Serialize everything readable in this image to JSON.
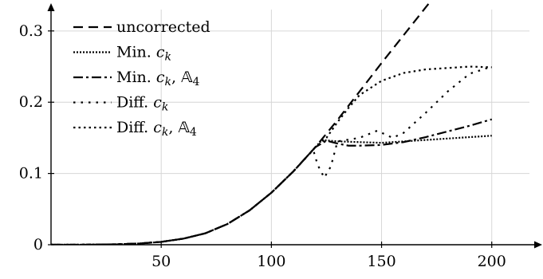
{
  "chart_data": {
    "type": "line",
    "title": "",
    "xlabel": "",
    "ylabel": "",
    "xlim": [
      0,
      220
    ],
    "ylim": [
      0,
      0.33
    ],
    "x_ticks": [
      50,
      100,
      150,
      200
    ],
    "x_tick_labels": [
      "50",
      "100",
      "150",
      "200"
    ],
    "y_ticks": [
      0,
      0.1,
      0.2,
      0.3
    ],
    "y_tick_labels": [
      "0",
      "0.1",
      "0.2",
      "0.3"
    ],
    "grid": true,
    "legend_position": "top-left",
    "series": [
      {
        "name": "uncorrected",
        "legend": {
          "text": "uncorrected",
          "math": "",
          "extra": ""
        },
        "dash": "12,7",
        "points": [
          [
            0,
            0
          ],
          [
            10,
            0
          ],
          [
            20,
            0.0002
          ],
          [
            30,
            0.0006
          ],
          [
            40,
            0.0017
          ],
          [
            50,
            0.004
          ],
          [
            60,
            0.0085
          ],
          [
            70,
            0.016
          ],
          [
            80,
            0.029
          ],
          [
            90,
            0.048
          ],
          [
            100,
            0.073
          ],
          [
            110,
            0.103
          ],
          [
            120,
            0.137
          ],
          [
            130,
            0.175
          ],
          [
            140,
            0.215
          ],
          [
            150,
            0.255
          ],
          [
            160,
            0.294
          ],
          [
            170,
            0.333
          ],
          [
            177,
            0.36
          ]
        ]
      },
      {
        "name": "Min. c_k",
        "legend": {
          "text": "Min. ",
          "math": "c",
          "sub": "k",
          "extra": ""
        },
        "dash": "2,2",
        "points": [
          [
            0,
            0
          ],
          [
            10,
            0
          ],
          [
            20,
            0.0002
          ],
          [
            30,
            0.0006
          ],
          [
            40,
            0.0017
          ],
          [
            50,
            0.004
          ],
          [
            60,
            0.0085
          ],
          [
            70,
            0.016
          ],
          [
            80,
            0.029
          ],
          [
            90,
            0.048
          ],
          [
            100,
            0.073
          ],
          [
            110,
            0.103
          ],
          [
            120,
            0.137
          ],
          [
            123,
            0.147
          ],
          [
            130,
            0.145
          ],
          [
            140,
            0.144
          ],
          [
            150,
            0.143
          ],
          [
            160,
            0.145
          ],
          [
            170,
            0.147
          ],
          [
            180,
            0.149
          ],
          [
            190,
            0.151
          ],
          [
            200,
            0.153
          ]
        ]
      },
      {
        "name": "Min. c_k, A4",
        "legend": {
          "text": "Min. ",
          "math": "c",
          "sub": "k",
          "extra": "𝔸4"
        },
        "dash": "12,4,3,4",
        "points": [
          [
            0,
            0
          ],
          [
            10,
            0
          ],
          [
            20,
            0.0002
          ],
          [
            30,
            0.0006
          ],
          [
            40,
            0.0017
          ],
          [
            50,
            0.004
          ],
          [
            60,
            0.0085
          ],
          [
            70,
            0.016
          ],
          [
            80,
            0.029
          ],
          [
            90,
            0.048
          ],
          [
            100,
            0.073
          ],
          [
            110,
            0.103
          ],
          [
            120,
            0.137
          ],
          [
            125,
            0.146
          ],
          [
            130,
            0.142
          ],
          [
            135,
            0.139
          ],
          [
            140,
            0.139
          ],
          [
            150,
            0.14
          ],
          [
            160,
            0.144
          ],
          [
            170,
            0.151
          ],
          [
            180,
            0.159
          ],
          [
            190,
            0.167
          ],
          [
            200,
            0.176
          ]
        ]
      },
      {
        "name": "Diff. c_k",
        "legend": {
          "text": "Diff. ",
          "math": "c",
          "sub": "k",
          "extra": ""
        },
        "dash": "2.5,7",
        "points": [
          [
            0,
            0
          ],
          [
            10,
            0
          ],
          [
            20,
            0.0002
          ],
          [
            30,
            0.0006
          ],
          [
            40,
            0.0017
          ],
          [
            50,
            0.004
          ],
          [
            60,
            0.0085
          ],
          [
            70,
            0.016
          ],
          [
            80,
            0.029
          ],
          [
            90,
            0.048
          ],
          [
            100,
            0.073
          ],
          [
            110,
            0.103
          ],
          [
            119,
            0.133
          ],
          [
            121,
            0.112
          ],
          [
            124,
            0.094
          ],
          [
            127,
            0.11
          ],
          [
            130,
            0.145
          ],
          [
            140,
            0.15
          ],
          [
            148,
            0.16
          ],
          [
            155,
            0.15
          ],
          [
            160,
            0.157
          ],
          [
            170,
            0.185
          ],
          [
            180,
            0.215
          ],
          [
            190,
            0.24
          ],
          [
            200,
            0.25
          ]
        ]
      },
      {
        "name": "Diff. c_k, A4",
        "legend": {
          "text": "Diff. ",
          "math": "c",
          "sub": "k",
          "extra": "𝔸4"
        },
        "dash": "2.5,4",
        "points": [
          [
            0,
            0
          ],
          [
            10,
            0
          ],
          [
            20,
            0.0002
          ],
          [
            30,
            0.0006
          ],
          [
            40,
            0.0017
          ],
          [
            50,
            0.004
          ],
          [
            60,
            0.0085
          ],
          [
            70,
            0.016
          ],
          [
            80,
            0.029
          ],
          [
            90,
            0.048
          ],
          [
            100,
            0.073
          ],
          [
            110,
            0.103
          ],
          [
            120,
            0.137
          ],
          [
            125,
            0.15
          ],
          [
            130,
            0.172
          ],
          [
            135,
            0.192
          ],
          [
            140,
            0.21
          ],
          [
            150,
            0.23
          ],
          [
            160,
            0.241
          ],
          [
            170,
            0.246
          ],
          [
            180,
            0.248
          ],
          [
            190,
            0.25
          ],
          [
            200,
            0.249
          ]
        ]
      }
    ]
  }
}
